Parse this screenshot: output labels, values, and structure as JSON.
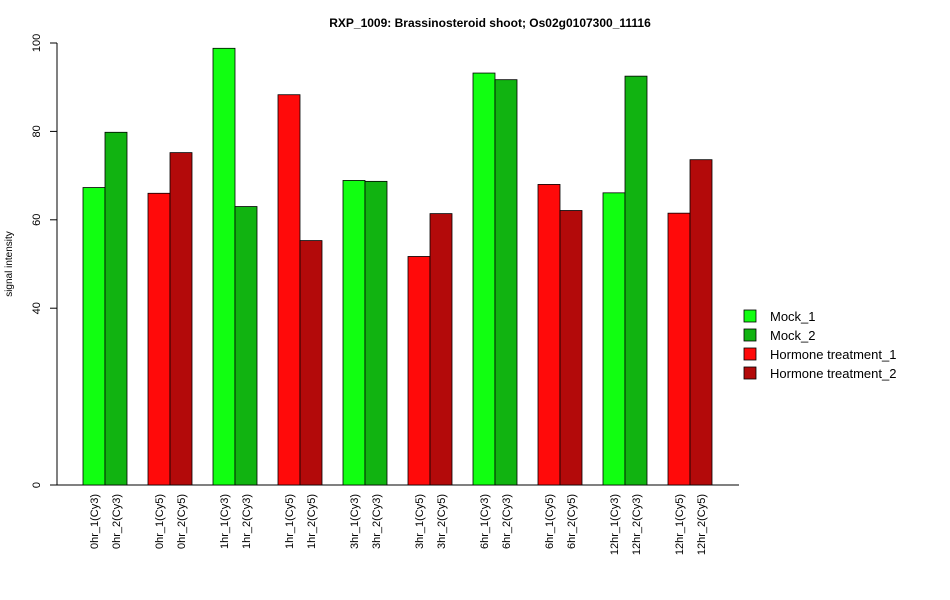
{
  "chart_data": {
    "type": "bar",
    "title": "RXP_1009: Brassinosteroid shoot; Os02g0107300_11116",
    "xlabel": "",
    "ylabel": "signal intensity",
    "ylim": [
      0,
      100
    ],
    "y_ticks": [
      0,
      40,
      60,
      80,
      100
    ],
    "grid": false,
    "legend_position": "right",
    "bars": [
      {
        "label": "0hr_1(Cy3)",
        "value": 67.3,
        "series": "Mock_1"
      },
      {
        "label": "0hr_2(Cy3)",
        "value": 79.8,
        "series": "Mock_2"
      },
      {
        "label": "0hr_1(Cy5)",
        "value": 66.0,
        "series": "Hormone treatment_1"
      },
      {
        "label": "0hr_2(Cy5)",
        "value": 75.2,
        "series": "Hormone treatment_2"
      },
      {
        "label": "1hr_1(Cy3)",
        "value": 98.8,
        "series": "Mock_1"
      },
      {
        "label": "1hr_2(Cy3)",
        "value": 63.0,
        "series": "Mock_2"
      },
      {
        "label": "1hr_1(Cy5)",
        "value": 88.3,
        "series": "Hormone treatment_1"
      },
      {
        "label": "1hr_2(Cy5)",
        "value": 55.3,
        "series": "Hormone treatment_2"
      },
      {
        "label": "3hr_1(Cy3)",
        "value": 68.9,
        "series": "Mock_1"
      },
      {
        "label": "3hr_2(Cy3)",
        "value": 68.7,
        "series": "Mock_2"
      },
      {
        "label": "3hr_1(Cy5)",
        "value": 51.7,
        "series": "Hormone treatment_1"
      },
      {
        "label": "3hr_2(Cy5)",
        "value": 61.4,
        "series": "Hormone treatment_2"
      },
      {
        "label": "6hr_1(Cy3)",
        "value": 93.2,
        "series": "Mock_1"
      },
      {
        "label": "6hr_2(Cy3)",
        "value": 91.7,
        "series": "Mock_2"
      },
      {
        "label": "6hr_1(Cy5)",
        "value": 68.0,
        "series": "Hormone treatment_1"
      },
      {
        "label": "6hr_2(Cy5)",
        "value": 62.1,
        "series": "Hormone treatment_2"
      },
      {
        "label": "12hr_1(Cy3)",
        "value": 66.1,
        "series": "Mock_1"
      },
      {
        "label": "12hr_2(Cy3)",
        "value": 92.5,
        "series": "Mock_2"
      },
      {
        "label": "12hr_1(Cy5)",
        "value": 61.5,
        "series": "Hormone treatment_1"
      },
      {
        "label": "12hr_2(Cy5)",
        "value": 73.6,
        "series": "Hormone treatment_2"
      }
    ],
    "series": [
      {
        "name": "Mock_1",
        "color": "#11ff11"
      },
      {
        "name": "Mock_2",
        "color": "#11b311"
      },
      {
        "name": "Hormone treatment_1",
        "color": "#ff0a0a"
      },
      {
        "name": "Hormone treatment_2",
        "color": "#b30a0a"
      }
    ]
  }
}
